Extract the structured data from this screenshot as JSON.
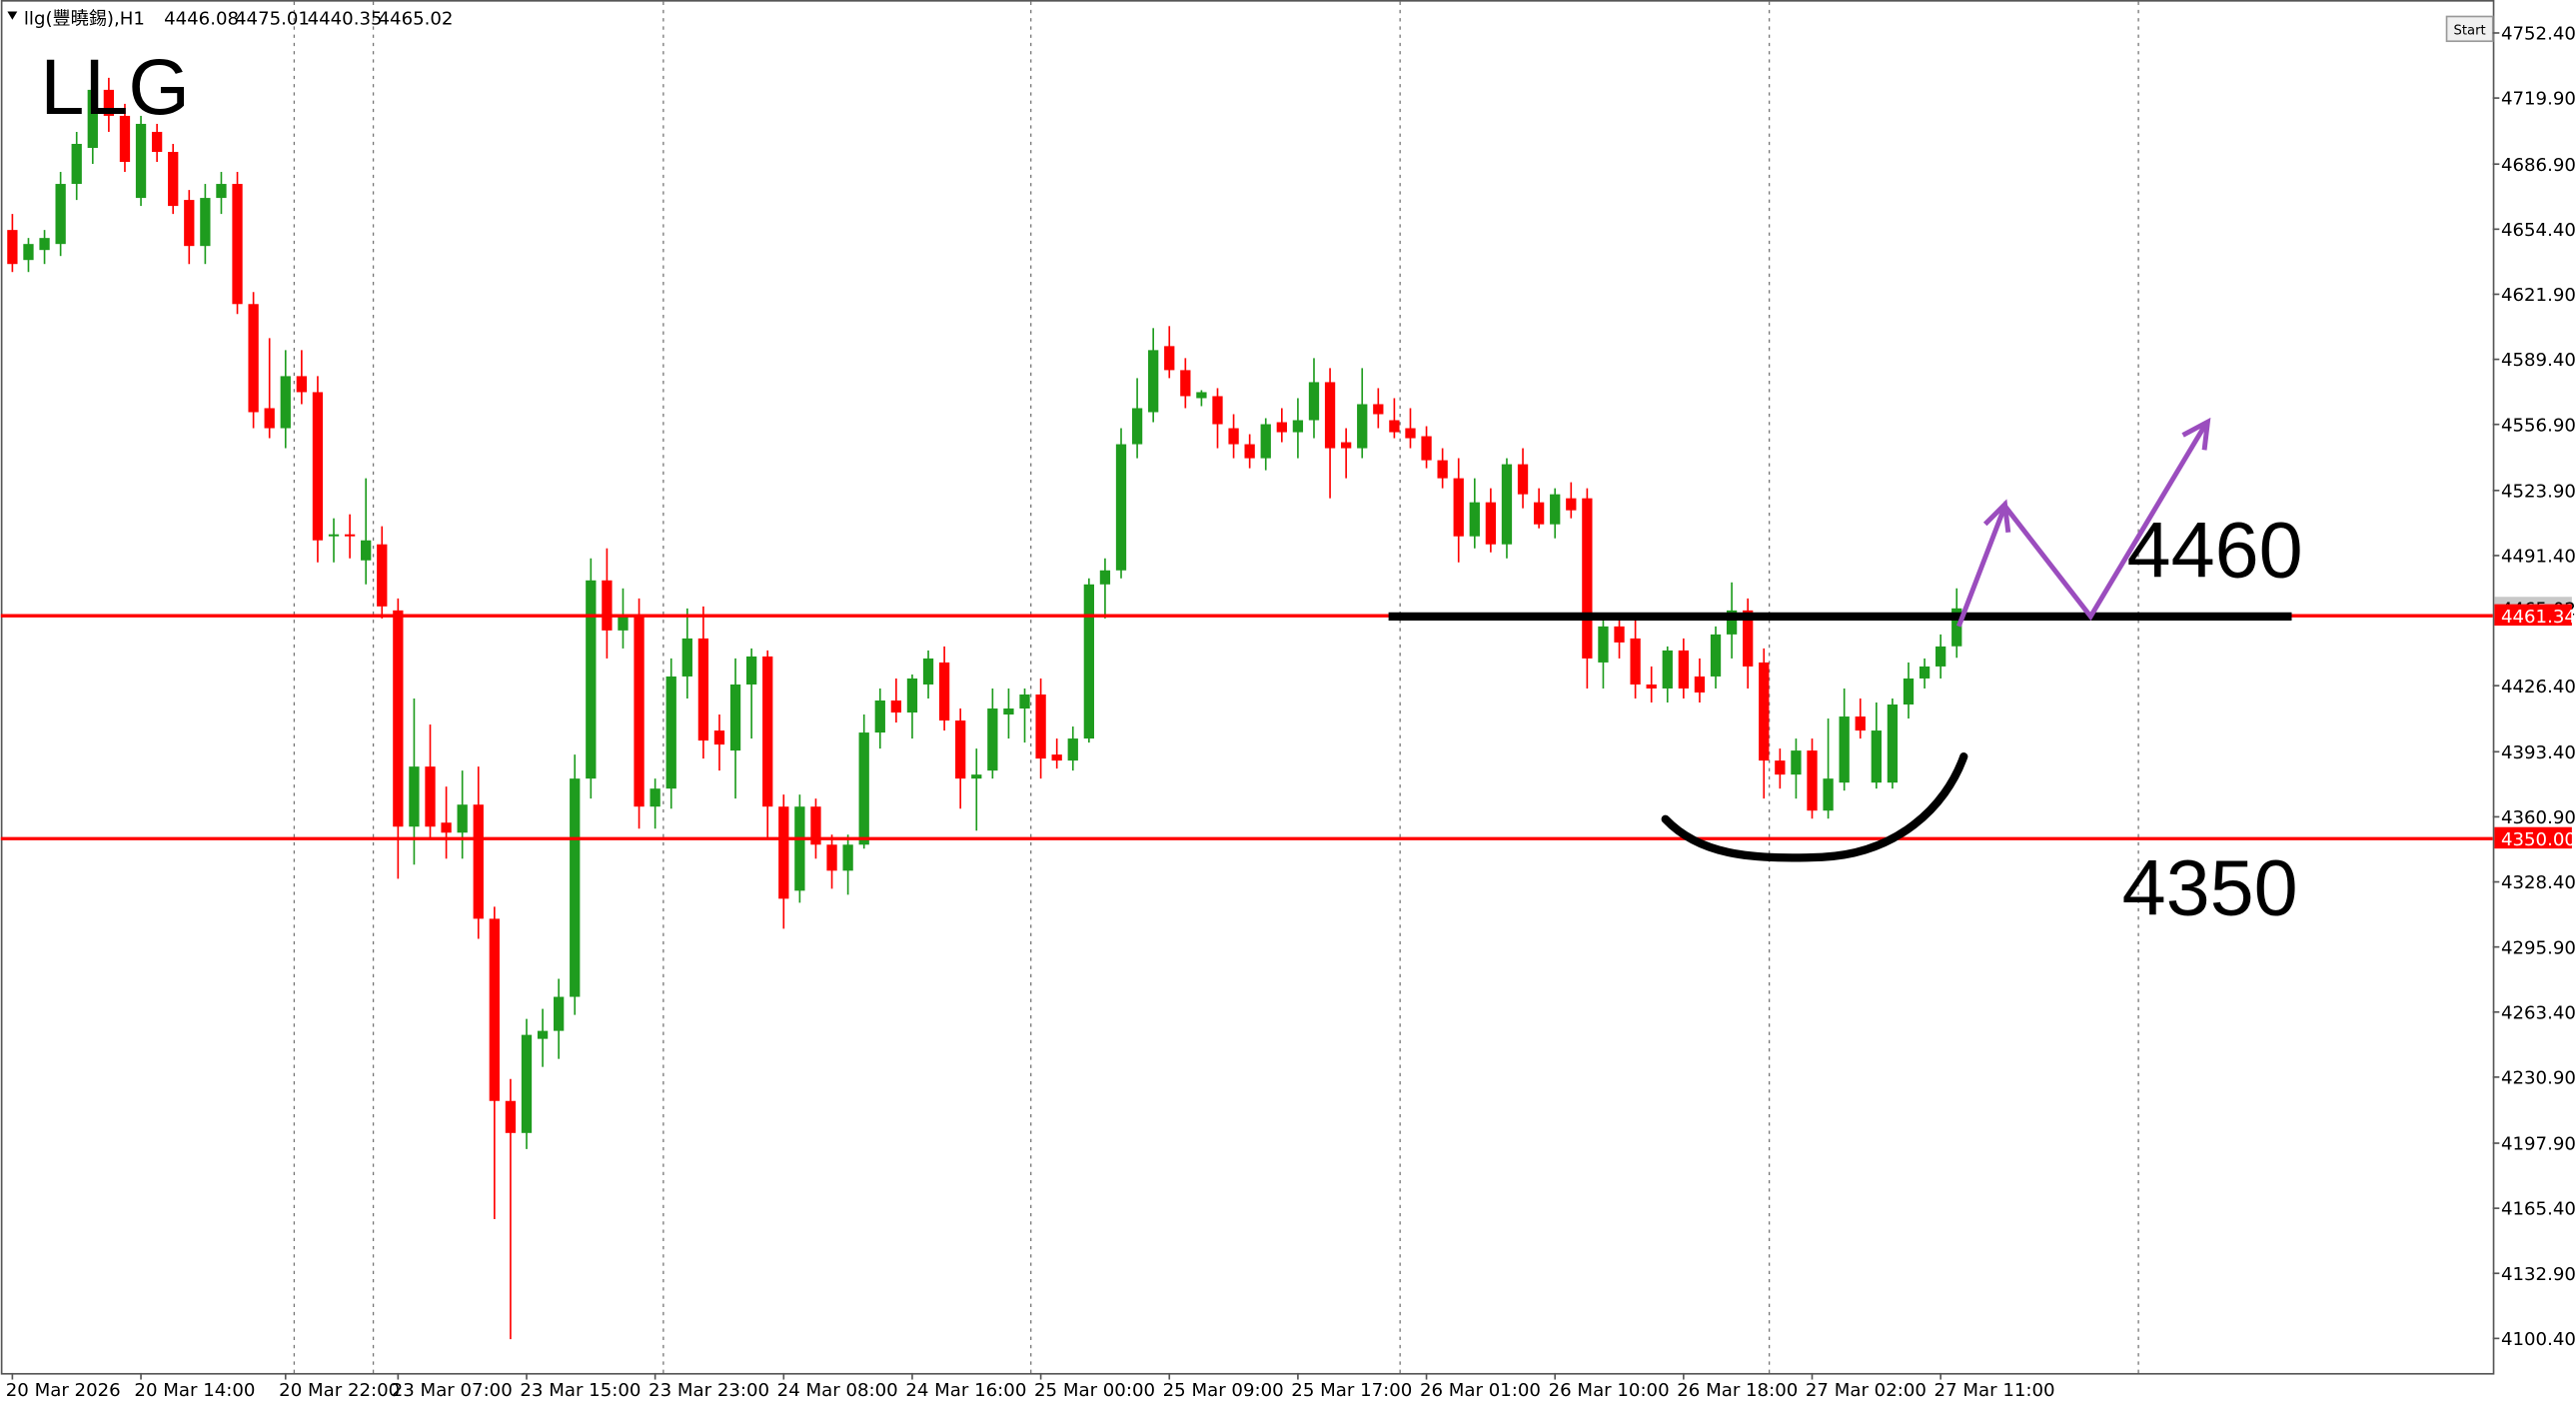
{
  "header": {
    "symbol": "llg(豐曉錫),H1"
  },
  "start_button": "Start",
  "chart_data": {
    "type": "candlestick",
    "title": "LLG",
    "up_color": "#1e9c1e",
    "down_color": "#ff0000",
    "candles": [
      [
        4654,
        4662,
        4633,
        4637
      ],
      [
        4639,
        4650,
        4633,
        4647
      ],
      [
        4644,
        4654,
        4637,
        4650
      ],
      [
        4647,
        4683,
        4641,
        4677
      ],
      [
        4677,
        4703,
        4669,
        4697
      ],
      [
        4695,
        4730,
        4687,
        4724
      ],
      [
        4724,
        4730,
        4703,
        4711
      ],
      [
        4711,
        4717,
        4683,
        4688
      ],
      [
        4670,
        4711,
        4666,
        4707
      ],
      [
        4703,
        4707,
        4688,
        4693
      ],
      [
        4693,
        4697,
        4662,
        4666
      ],
      [
        4669,
        4674,
        4637,
        4646
      ],
      [
        4646,
        4677,
        4637,
        4670
      ],
      [
        4670,
        4683,
        4662,
        4677
      ],
      [
        4677,
        4683,
        4612,
        4617
      ],
      [
        4617,
        4623,
        4555,
        4563
      ],
      [
        4565,
        4600,
        4550,
        4555
      ],
      [
        4555,
        4594,
        4545,
        4581
      ],
      [
        4581,
        4594,
        4567,
        4573
      ],
      [
        4573,
        4581,
        4488,
        4499
      ],
      [
        4501,
        4510,
        4488,
        4502
      ],
      [
        4502,
        4512,
        4490,
        4501
      ],
      [
        4489,
        4530,
        4477,
        4499
      ],
      [
        4497,
        4506,
        4460,
        4466
      ],
      [
        4464,
        4470,
        4330,
        4356
      ],
      [
        4356,
        4420,
        4337,
        4386
      ],
      [
        4386,
        4407,
        4350,
        4356
      ],
      [
        4358,
        4376,
        4340,
        4353
      ],
      [
        4353,
        4384,
        4340,
        4367
      ],
      [
        4367,
        4386,
        4300,
        4310
      ],
      [
        4310,
        4316,
        4160,
        4219
      ],
      [
        4219,
        4230,
        4100,
        4203
      ],
      [
        4203,
        4260,
        4195,
        4252
      ],
      [
        4250,
        4265,
        4236,
        4254
      ],
      [
        4254,
        4280,
        4240,
        4271
      ],
      [
        4271,
        4392,
        4262,
        4380
      ],
      [
        4380,
        4490,
        4370,
        4479
      ],
      [
        4479,
        4495,
        4440,
        4454
      ],
      [
        4454,
        4475,
        4445,
        4462
      ],
      [
        4462,
        4470,
        4355,
        4366
      ],
      [
        4366,
        4380,
        4355,
        4375
      ],
      [
        4375,
        4440,
        4365,
        4431
      ],
      [
        4431,
        4465,
        4420,
        4450
      ],
      [
        4450,
        4466,
        4390,
        4399
      ],
      [
        4404,
        4412,
        4384,
        4397
      ],
      [
        4394,
        4440,
        4370,
        4427
      ],
      [
        4427,
        4445,
        4400,
        4441
      ],
      [
        4441,
        4444,
        4350,
        4366
      ],
      [
        4366,
        4372,
        4305,
        4320
      ],
      [
        4324,
        4372,
        4318,
        4366
      ],
      [
        4366,
        4370,
        4340,
        4347
      ],
      [
        4347,
        4352,
        4325,
        4334
      ],
      [
        4334,
        4352,
        4322,
        4347
      ],
      [
        4347,
        4412,
        4345,
        4403
      ],
      [
        4403,
        4425,
        4395,
        4419
      ],
      [
        4419,
        4430,
        4408,
        4413
      ],
      [
        4413,
        4432,
        4400,
        4430
      ],
      [
        4427,
        4444,
        4420,
        4440
      ],
      [
        4438,
        4446,
        4404,
        4409
      ],
      [
        4409,
        4415,
        4365,
        4380
      ],
      [
        4380,
        4395,
        4354,
        4382
      ],
      [
        4384,
        4425,
        4380,
        4415
      ],
      [
        4412,
        4425,
        4400,
        4415
      ],
      [
        4415,
        4425,
        4398,
        4422
      ],
      [
        4422,
        4430,
        4380,
        4390
      ],
      [
        4392,
        4400,
        4385,
        4389
      ],
      [
        4389,
        4406,
        4384,
        4400
      ],
      [
        4400,
        4480,
        4398,
        4477
      ],
      [
        4477,
        4490,
        4460,
        4484
      ],
      [
        4484,
        4555,
        4480,
        4547
      ],
      [
        4547,
        4580,
        4540,
        4565
      ],
      [
        4563,
        4605,
        4558,
        4594
      ],
      [
        4596,
        4606,
        4580,
        4584
      ],
      [
        4584,
        4590,
        4565,
        4571
      ],
      [
        4570,
        4574,
        4566,
        4573
      ],
      [
        4571,
        4575,
        4545,
        4557
      ],
      [
        4555,
        4562,
        4540,
        4547
      ],
      [
        4547,
        4552,
        4535,
        4540
      ],
      [
        4540,
        4560,
        4534,
        4557
      ],
      [
        4558,
        4565,
        4548,
        4553
      ],
      [
        4553,
        4570,
        4540,
        4559
      ],
      [
        4559,
        4590,
        4550,
        4578
      ],
      [
        4578,
        4585,
        4520,
        4545
      ],
      [
        4548,
        4555,
        4530,
        4545
      ],
      [
        4545,
        4585,
        4540,
        4567
      ],
      [
        4567,
        4575,
        4555,
        4562
      ],
      [
        4559,
        4570,
        4550,
        4553
      ],
      [
        4555,
        4565,
        4545,
        4550
      ],
      [
        4551,
        4556,
        4535,
        4539
      ],
      [
        4539,
        4545,
        4525,
        4530
      ],
      [
        4530,
        4540,
        4488,
        4501
      ],
      [
        4501,
        4530,
        4495,
        4518
      ],
      [
        4518,
        4525,
        4493,
        4497
      ],
      [
        4497,
        4540,
        4490,
        4537
      ],
      [
        4537,
        4545,
        4515,
        4522
      ],
      [
        4518,
        4525,
        4505,
        4507
      ],
      [
        4507,
        4525,
        4500,
        4522
      ],
      [
        4520,
        4528,
        4510,
        4514
      ],
      [
        4520,
        4525,
        4425,
        4440
      ],
      [
        4438,
        4462,
        4425,
        4456
      ],
      [
        4456,
        4462,
        4440,
        4448
      ],
      [
        4450,
        4460,
        4420,
        4427
      ],
      [
        4427,
        4436,
        4418,
        4425
      ],
      [
        4425,
        4446,
        4418,
        4444
      ],
      [
        4444,
        4450,
        4420,
        4425
      ],
      [
        4431,
        4440,
        4418,
        4423
      ],
      [
        4431,
        4456,
        4425,
        4452
      ],
      [
        4452,
        4478,
        4440,
        4464
      ],
      [
        4464,
        4470,
        4425,
        4436
      ],
      [
        4438,
        4445,
        4370,
        4389
      ],
      [
        4389,
        4395,
        4375,
        4382
      ],
      [
        4382,
        4400,
        4370,
        4394
      ],
      [
        4394,
        4400,
        4360,
        4364
      ],
      [
        4364,
        4410,
        4360,
        4380
      ],
      [
        4378,
        4425,
        4374,
        4411
      ],
      [
        4411,
        4420,
        4400,
        4404
      ],
      [
        4378,
        4418,
        4375,
        4404
      ],
      [
        4378,
        4420,
        4375,
        4417
      ],
      [
        4417,
        4438,
        4410,
        4430
      ],
      [
        4430,
        4440,
        4425,
        4436
      ],
      [
        4436,
        4452,
        4430,
        4446
      ],
      [
        4446.08,
        4475.01,
        4440.35,
        4465.02
      ]
    ],
    "xlim": [
      -0.72,
      154.36
    ],
    "ylim": [
      4083.14,
      4768.86
    ],
    "yticks": [
      {
        "value": 4752.4,
        "label": "4752.40"
      },
      {
        "value": 4719.9,
        "label": "4719.90"
      },
      {
        "value": 4686.9,
        "label": "4686.90"
      },
      {
        "value": 4654.4,
        "label": "4654.40"
      },
      {
        "value": 4621.9,
        "label": "4621.90"
      },
      {
        "value": 4589.4,
        "label": "4589.40"
      },
      {
        "value": 4556.9,
        "label": "4556.90"
      },
      {
        "value": 4523.9,
        "label": "4523.90"
      },
      {
        "value": 4491.4,
        "label": "4491.40"
      },
      {
        "value": 4426.4,
        "label": "4426.40"
      },
      {
        "value": 4393.4,
        "label": "4393.40"
      },
      {
        "value": 4360.9,
        "label": "4360.90"
      },
      {
        "value": 4328.4,
        "label": "4328.40"
      },
      {
        "value": 4295.9,
        "label": "4295.90"
      },
      {
        "value": 4263.4,
        "label": "4263.40"
      },
      {
        "value": 4230.9,
        "label": "4230.90"
      },
      {
        "value": 4197.9,
        "label": "4197.90"
      },
      {
        "value": 4165.4,
        "label": "4165.40"
      },
      {
        "value": 4132.9,
        "label": "4132.90"
      },
      {
        "value": 4100.4,
        "label": "4100.40"
      }
    ],
    "xticks": [
      {
        "value": 0,
        "label": "20 Mar 2026"
      },
      {
        "value": 8,
        "label": "20 Mar 14:00"
      },
      {
        "value": 17,
        "label": "20 Mar 22:00"
      },
      {
        "value": 24,
        "label": "23 Mar 07:00"
      },
      {
        "value": 32,
        "label": "23 Mar 15:00"
      },
      {
        "value": 40,
        "label": "23 Mar 23:00"
      },
      {
        "value": 48,
        "label": "24 Mar 08:00"
      },
      {
        "value": 56,
        "label": "24 Mar 16:00"
      },
      {
        "value": 64,
        "label": "25 Mar 00:00"
      },
      {
        "value": 72,
        "label": "25 Mar 09:00"
      },
      {
        "value": 80,
        "label": "25 Mar 17:00"
      },
      {
        "value": 88,
        "label": "26 Mar 01:00"
      },
      {
        "value": 96,
        "label": "26 Mar 10:00"
      },
      {
        "value": 104,
        "label": "26 Mar 18:00"
      },
      {
        "value": 112,
        "label": "27 Mar 02:00"
      },
      {
        "value": 120,
        "label": "27 Mar 11:00"
      }
    ],
    "grid": false,
    "hlines": [
      {
        "value": 4461.34,
        "color": "#ff0000"
      },
      {
        "value": 4350,
        "label": "4350.00",
        "color": "#ff0000"
      }
    ],
    "annotations": [
      "4460",
      "4350"
    ]
  }
}
